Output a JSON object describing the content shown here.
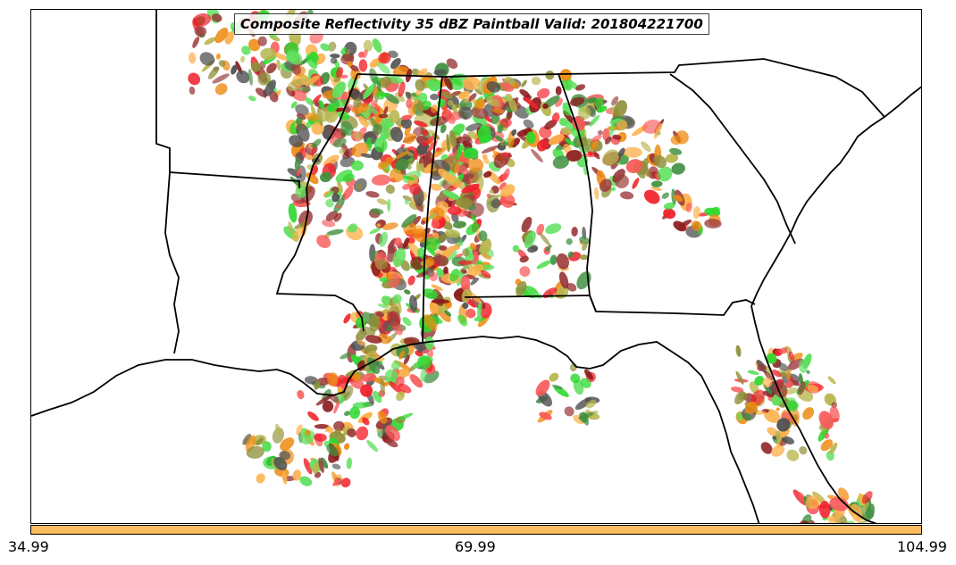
{
  "title": "Composite Reflectivity 35 dBZ Paintball Valid: 201804221700",
  "colorbar": {
    "color": "#fcbd5e",
    "ticks": [
      "34.99",
      "69.99",
      "104.99"
    ]
  },
  "palette": {
    "green": "#2ed82e",
    "light_green": "#5ee05e",
    "dark_green": "#3f8f3f",
    "red": "#f2202a",
    "light_red": "#f85a5a",
    "dark_red": "#8b1a1a",
    "maroon": "#9a3b3b",
    "orange": "#ee8a10",
    "light_orange": "#fcb04a",
    "olive": "#8f8f3a",
    "khaki": "#b8b64e",
    "gray": "#505050"
  }
}
